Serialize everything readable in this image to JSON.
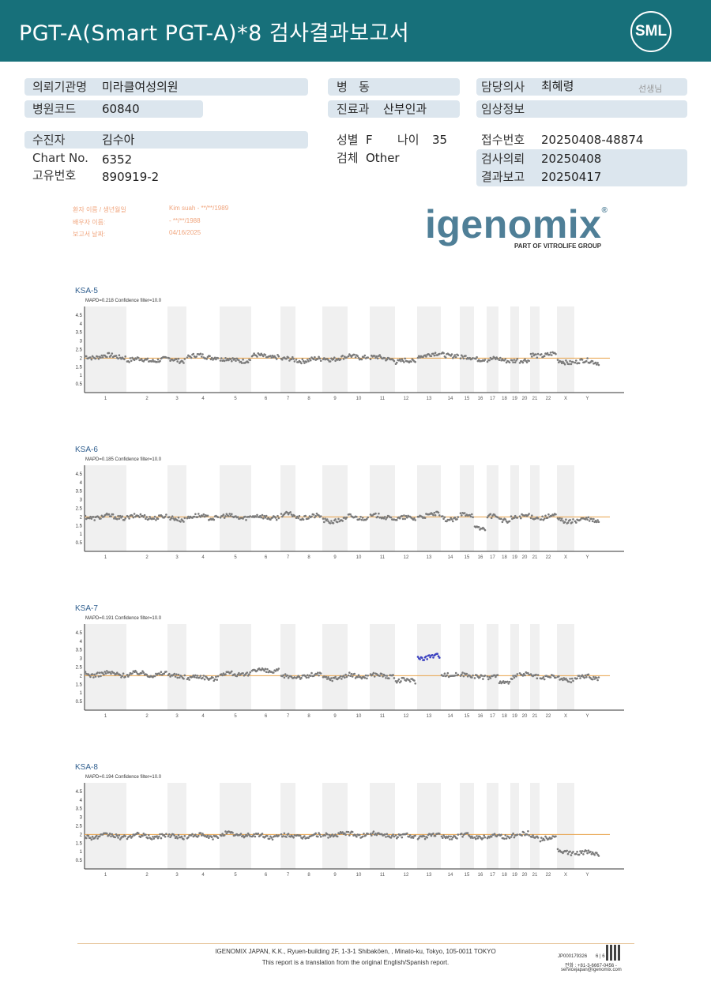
{
  "header": {
    "title": "PGT-A(Smart  PGT-A)*8 검사결과보고서",
    "logo": "SML"
  },
  "info": {
    "institution_label": "의뢰기관명",
    "institution": "미라클여성의원",
    "hospital_code_label": "병원코드",
    "hospital_code": "60840",
    "ward_label": "병   동",
    "ward": "",
    "department_label": "진료과",
    "department": "산부인과",
    "doctor_label": "담당의사",
    "doctor": "최혜령",
    "doctor_suffix": "선생님",
    "clinical_label": "임상정보",
    "clinical": "",
    "patient_label": "수진자",
    "patient": "김수아",
    "chart_no_label": "Chart No.",
    "chart_no": "6352",
    "unique_label": "고유번호",
    "unique": "890919-2",
    "sex_label": "성별",
    "sex": "F",
    "age_label": "나이",
    "age": "35",
    "specimen_label": "검체",
    "specimen": "Other",
    "receipt_label": "접수번호",
    "receipt": "20250408-48874",
    "request_label": "검사의뢰",
    "request": "20250408",
    "report_label": "결과보고",
    "report": "20250417"
  },
  "stamp": {
    "l1": "환자 이름 / 생년월일",
    "v1": "Kim suah - **/**/1989",
    "l2": "배우자 이름:",
    "v2": "- **/**/1988",
    "l3": "보고서 날짜:",
    "v3": "04/16/2025"
  },
  "brand": {
    "name": "igenomix",
    "sub": "PART OF VITROLIFE GROUP"
  },
  "charts": [
    {
      "title": "KSA-5",
      "meta": "MAPD=0.218 Confidence filter=10.0"
    },
    {
      "title": "KSA-6",
      "meta": "MAPD=0.185 Confidence filter=10.0"
    },
    {
      "title": "KSA-7",
      "meta": "MAPD=0.191 Confidence filter=10.0"
    },
    {
      "title": "KSA-8",
      "meta": "MAPD=0.194 Confidence filter=10.0"
    }
  ],
  "chart_data": [
    {
      "type": "scatter",
      "title": "KSA-5",
      "yticks": [
        "4.5",
        "4",
        "3.5",
        "3",
        "2.5",
        "2",
        "1.5",
        "1",
        "0.5"
      ],
      "ylim": [
        0,
        5
      ],
      "baseline": 2,
      "categories": [
        "1",
        "2",
        "3",
        "4",
        "5",
        "6",
        "7",
        "8",
        "9",
        "10",
        "11",
        "12",
        "13",
        "14",
        "15",
        "16",
        "17",
        "18",
        "19",
        "20",
        "21",
        "22",
        "X",
        "Y"
      ],
      "values": [
        2.1,
        1.9,
        1.9,
        2.1,
        1.9,
        2.1,
        1.9,
        1.9,
        2.0,
        2.1,
        2.0,
        1.8,
        2.2,
        2.2,
        2.0,
        2.0,
        1.9,
        1.9,
        1.9,
        1.8,
        2.2,
        2.2,
        1.8,
        1.8
      ]
    },
    {
      "type": "scatter",
      "title": "KSA-6",
      "yticks": [
        "4.5",
        "4",
        "3.5",
        "3",
        "2.5",
        "2",
        "1.5",
        "1",
        "0.5"
      ],
      "ylim": [
        0,
        5
      ],
      "baseline": 2,
      "categories": [
        "1",
        "2",
        "3",
        "4",
        "5",
        "6",
        "7",
        "8",
        "9",
        "10",
        "11",
        "12",
        "13",
        "14",
        "15",
        "16",
        "17",
        "18",
        "19",
        "20",
        "21",
        "22",
        "X",
        "Y"
      ],
      "values": [
        2.0,
        2.0,
        1.9,
        2.0,
        2.0,
        2.0,
        2.1,
        2.0,
        1.8,
        2.0,
        2.0,
        1.9,
        2.1,
        1.9,
        2.1,
        1.4,
        2.0,
        1.8,
        2.0,
        2.0,
        2.0,
        2.0,
        1.8,
        1.8
      ]
    },
    {
      "type": "scatter",
      "title": "KSA-7",
      "yticks": [
        "4.5",
        "4",
        "3.5",
        "3",
        "2.5",
        "2",
        "1.5",
        "1",
        "0.5"
      ],
      "ylim": [
        0,
        5
      ],
      "baseline": 2,
      "categories": [
        "1",
        "2",
        "3",
        "4",
        "5",
        "6",
        "7",
        "8",
        "9",
        "10",
        "11",
        "12",
        "13",
        "14",
        "15",
        "16",
        "17",
        "18",
        "19",
        "20",
        "21",
        "22",
        "X",
        "Y"
      ],
      "values": [
        2.1,
        2.1,
        2.0,
        1.9,
        2.1,
        2.3,
        1.9,
        2.0,
        1.9,
        2.0,
        2.0,
        1.7,
        3.1,
        2.1,
        2.0,
        2.0,
        1.9,
        1.6,
        2.0,
        2.0,
        2.0,
        1.9,
        1.8,
        1.9
      ]
    },
    {
      "type": "scatter",
      "title": "KSA-8",
      "yticks": [
        "4.5",
        "4",
        "3.5",
        "3",
        "2.5",
        "2",
        "1.5",
        "1",
        "0.5"
      ],
      "ylim": [
        0,
        5
      ],
      "baseline": 2,
      "categories": [
        "1",
        "2",
        "3",
        "4",
        "5",
        "6",
        "7",
        "8",
        "9",
        "10",
        "11",
        "12",
        "13",
        "14",
        "15",
        "16",
        "17",
        "18",
        "19",
        "20",
        "21",
        "22",
        "X",
        "Y"
      ],
      "values": [
        1.9,
        1.9,
        1.9,
        1.9,
        2.0,
        1.9,
        1.9,
        1.9,
        2.0,
        2.0,
        2.0,
        1.9,
        1.9,
        1.9,
        1.9,
        1.9,
        1.9,
        1.9,
        2.0,
        2.0,
        1.9,
        1.8,
        1.0,
        0.9
      ]
    }
  ],
  "footer": {
    "address": "IGENOMIX JAPAN, K.K., Ryuen-building 2F, 1-3-1 Shibakōen, , Minato-ku, Tokyo, 105-0011 TOKYO",
    "note": "This report is a translation from the original English/Spanish report.",
    "docno": "JP000179326",
    "page": "6 | 6",
    "phone": "전화 : +81-3-6667-0456  -",
    "email": "servicejapan@igenomix.com"
  }
}
